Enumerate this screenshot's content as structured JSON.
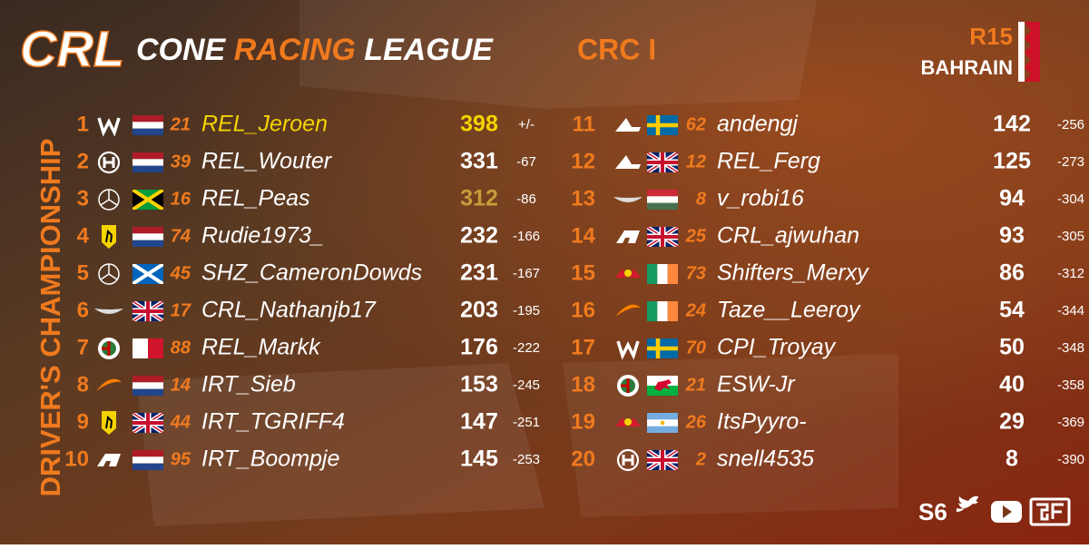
{
  "header": {
    "logo": "CRL",
    "title_words": [
      "CONE",
      "RACING",
      "LEAGUE"
    ],
    "division": "CRC I",
    "round": "R15",
    "venue": "BAHRAIN"
  },
  "side_title": "DRIVER'S CHAMPIONSHIP",
  "standings": [
    {
      "pos": 1,
      "number": 21,
      "driver": "REL_Jeroen",
      "points": 398,
      "gap": "+/-"
    },
    {
      "pos": 2,
      "number": 39,
      "driver": "REL_Wouter",
      "points": 331,
      "gap": -67
    },
    {
      "pos": 3,
      "number": 16,
      "driver": "REL_Peas",
      "points": 312,
      "gap": -86
    },
    {
      "pos": 4,
      "number": 74,
      "driver": "Rudie1973_",
      "points": 232,
      "gap": -166
    },
    {
      "pos": 5,
      "number": 45,
      "driver": "SHZ_CameronDowds",
      "points": 231,
      "gap": -167
    },
    {
      "pos": 6,
      "number": 17,
      "driver": "CRL_Nathanjb17",
      "points": 203,
      "gap": -195
    },
    {
      "pos": 7,
      "number": 88,
      "driver": "REL_Markk",
      "points": 176,
      "gap": -222
    },
    {
      "pos": 8,
      "number": 14,
      "driver": "IRT_Sieb",
      "points": 153,
      "gap": -245
    },
    {
      "pos": 9,
      "number": 44,
      "driver": "IRT_TGRIFF4",
      "points": 147,
      "gap": -251
    },
    {
      "pos": 10,
      "number": 95,
      "driver": "IRT_Boompje",
      "points": 145,
      "gap": -253
    },
    {
      "pos": 11,
      "number": 62,
      "driver": "andengj",
      "points": 142,
      "gap": -256
    },
    {
      "pos": 12,
      "number": 12,
      "driver": "REL_Ferg",
      "points": 125,
      "gap": -273
    },
    {
      "pos": 13,
      "number": 8,
      "driver": "v_robi16",
      "points": 94,
      "gap": -304
    },
    {
      "pos": 14,
      "number": 25,
      "driver": "CRL_ajwuhan",
      "points": 93,
      "gap": -305
    },
    {
      "pos": 15,
      "number": 73,
      "driver": "Shifters_Merxy",
      "points": 86,
      "gap": -312
    },
    {
      "pos": 16,
      "number": 24,
      "driver": "Taze__Leeroy",
      "points": 54,
      "gap": -344
    },
    {
      "pos": 17,
      "number": 70,
      "driver": "CPI_Troyay",
      "points": 50,
      "gap": -348
    },
    {
      "pos": 18,
      "number": 21,
      "driver": "ESW-Jr",
      "points": 40,
      "gap": -358
    },
    {
      "pos": 19,
      "number": 26,
      "driver": "ItsPyyro-",
      "points": 29,
      "gap": -369
    },
    {
      "pos": 20,
      "number": 2,
      "driver": "snell4535",
      "points": 8,
      "gap": -390
    }
  ],
  "footer": {
    "season": "S6"
  }
}
